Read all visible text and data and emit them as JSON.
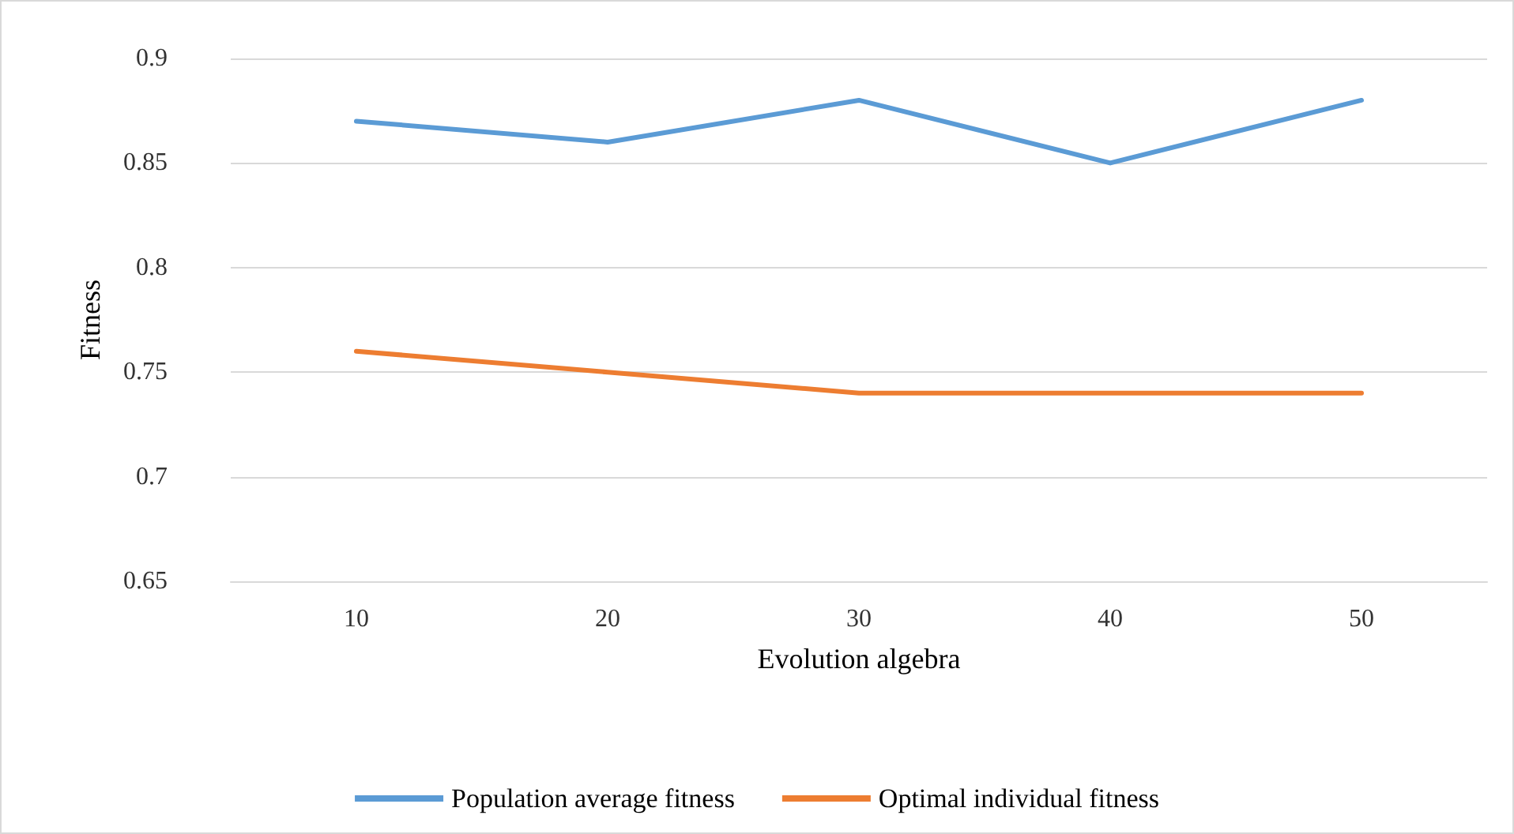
{
  "chart_data": {
    "type": "line",
    "xlabel": "Evolution algebra",
    "ylabel": "Fitness",
    "categories": [
      "10",
      "20",
      "30",
      "40",
      "50"
    ],
    "series": [
      {
        "name": "Population average fitness",
        "color": "#5b9bd5",
        "values": [
          0.87,
          0.86,
          0.88,
          0.85,
          0.88
        ]
      },
      {
        "name": "Optimal individual fitness",
        "color": "#ed7d31",
        "values": [
          0.76,
          0.75,
          0.74,
          0.74,
          0.74
        ]
      }
    ],
    "ylim": [
      0.65,
      0.9
    ],
    "yticks": [
      0.65,
      0.7,
      0.75,
      0.8,
      0.85,
      0.9
    ],
    "grid": "y",
    "legend": "bottom",
    "marker": "none",
    "line_style": "solid"
  }
}
